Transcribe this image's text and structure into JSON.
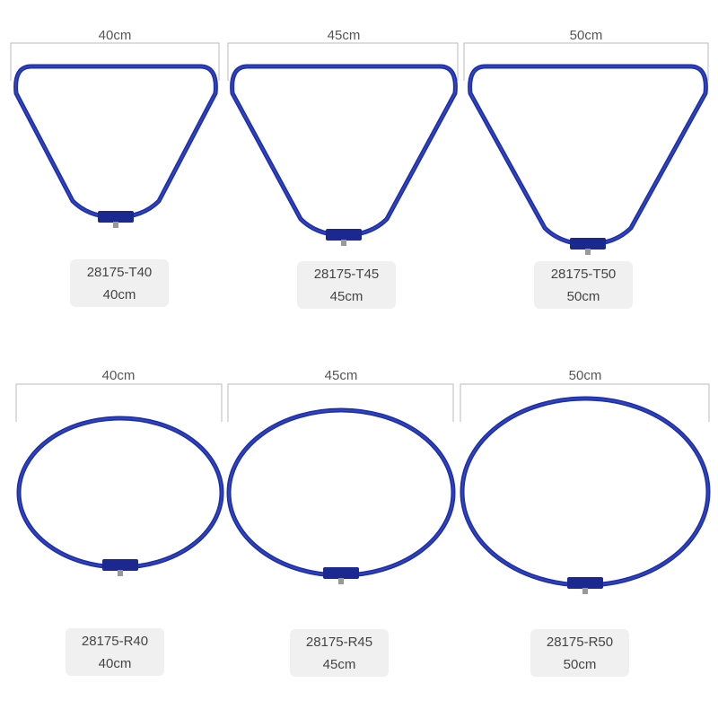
{
  "colors": {
    "frame": "#1f2fa6",
    "frame_highlight": "#3a52d6",
    "dimension_line": "#bbbbbb",
    "label_bg": "#f0f0f0"
  },
  "products": [
    {
      "shape": "triangle",
      "dimension": "40cm",
      "code": "28175-T40",
      "size": "40cm"
    },
    {
      "shape": "triangle",
      "dimension": "45cm",
      "code": "28175-T45",
      "size": "45cm"
    },
    {
      "shape": "triangle",
      "dimension": "50cm",
      "code": "28175-T50",
      "size": "50cm"
    },
    {
      "shape": "round",
      "dimension": "40cm",
      "code": "28175-R40",
      "size": "40cm"
    },
    {
      "shape": "round",
      "dimension": "45cm",
      "code": "28175-R45",
      "size": "45cm"
    },
    {
      "shape": "round",
      "dimension": "50cm",
      "code": "28175-R50",
      "size": "50cm"
    }
  ]
}
